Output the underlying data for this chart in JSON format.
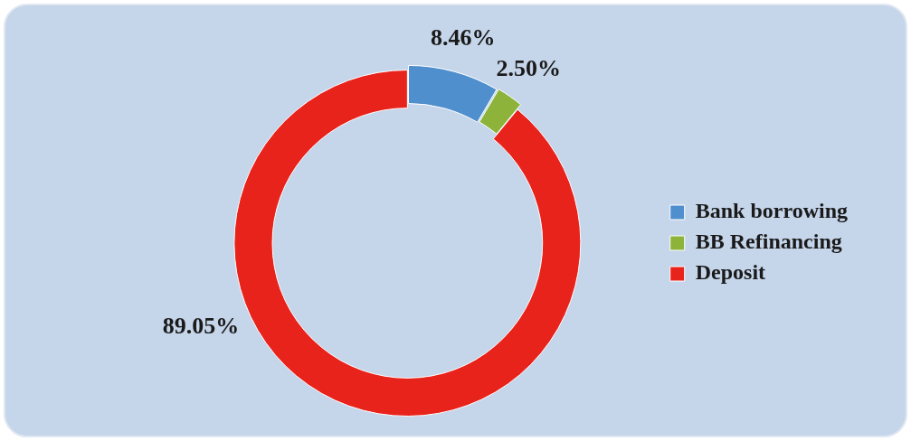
{
  "chart_data": {
    "type": "donut",
    "categories": [
      "Bank borrowing",
      "BB Refinancing",
      "Deposit"
    ],
    "values": [
      8.46,
      2.5,
      89.05
    ],
    "colors": [
      "#4f8fce",
      "#8db33a",
      "#e8231c"
    ],
    "value_labels": [
      "8.46%",
      "2.50%",
      "89.05%"
    ],
    "legend": "right"
  }
}
